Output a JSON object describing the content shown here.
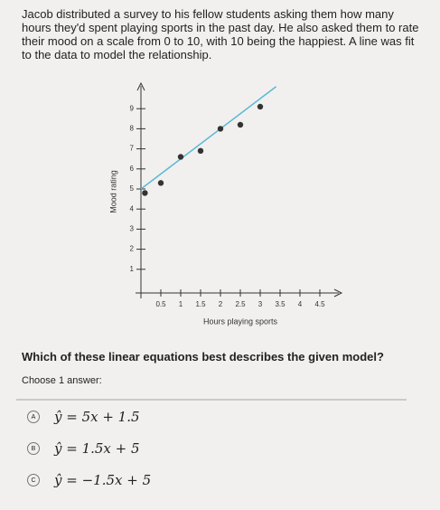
{
  "intro": "Jacob distributed a survey to his fellow students asking them how many hours they'd spent playing sports in the past day. He also asked them to rate their mood on a scale from 0 to 10, with 10 being the happiest. A line was fit to the data to model the relationship.",
  "chart": {
    "type": "scatter",
    "x_label": "Hours playing sports",
    "y_label": "Mood rating",
    "xlim": [
      0,
      5
    ],
    "ylim": [
      0,
      10
    ],
    "xticks": [
      0.5,
      1,
      1.5,
      2,
      2.5,
      3,
      3.5,
      4,
      4.5
    ],
    "yticks": [
      1,
      2,
      3,
      4,
      5,
      6,
      7,
      8,
      9
    ],
    "x": [
      0.1,
      0.5,
      1,
      1.5,
      2,
      2.5,
      3
    ],
    "y": [
      4.8,
      5.3,
      6.6,
      6.9,
      8,
      8.2,
      9.1
    ],
    "color": "#333333",
    "fit_line": {
      "x": [
        0,
        3.4
      ],
      "y": [
        5,
        10.1
      ],
      "color": "#5bb8d6"
    }
  },
  "question": "Which of these linear equations best describes the given model?",
  "choose": "Choose 1 answer:",
  "options": [
    {
      "letter": "A",
      "text": "ŷ = 5x + 1.5"
    },
    {
      "letter": "B",
      "text": "ŷ = 1.5x + 5"
    },
    {
      "letter": "C",
      "text": "ŷ = −1.5x + 5"
    }
  ]
}
